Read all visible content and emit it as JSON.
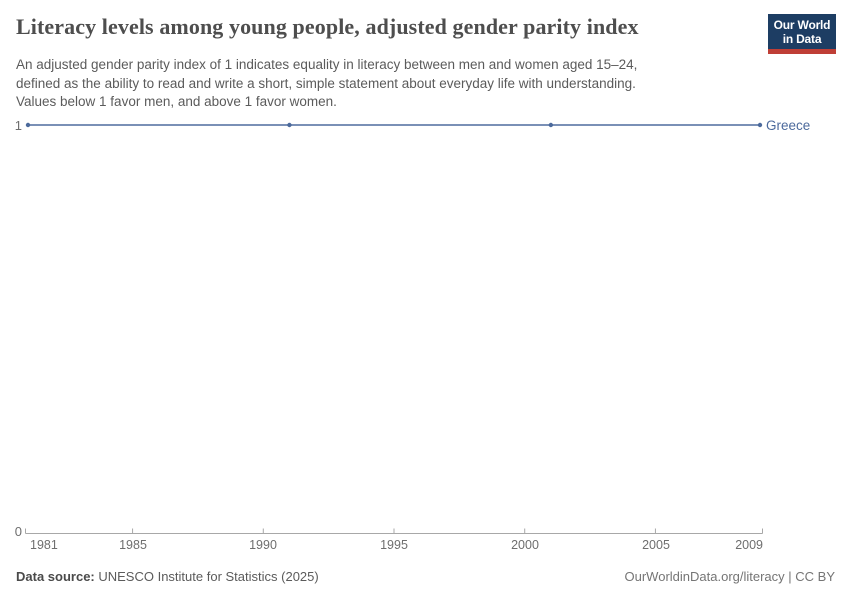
{
  "header": {
    "title": "Literacy levels among young people, adjusted gender parity index",
    "subtitle_lines": [
      "An adjusted gender parity index of 1 indicates equality in literacy between men and women aged 15–24,",
      "defined as the ability to read and write a short, simple statement about everyday life with understanding.",
      "Values below 1 favor men, and above 1 favor women."
    ],
    "logo": {
      "line1": "Our World",
      "line2": "in Data"
    }
  },
  "chart_data": {
    "type": "line",
    "title": "Literacy levels among young people, adjusted gender parity index",
    "entity": "Greece",
    "x": [
      1981,
      1991,
      2001,
      2009
    ],
    "series": [
      {
        "name": "Greece",
        "values": [
          1,
          1,
          1,
          1
        ]
      }
    ],
    "x_ticks": [
      "1981",
      "1985",
      "1990",
      "1995",
      "2000",
      "2005",
      "2009"
    ],
    "y_ticks": [
      "0",
      "1"
    ],
    "xlim": [
      1981,
      2009
    ],
    "ylim": [
      0,
      1
    ],
    "grid": false,
    "legend_position": "end-of-line-label",
    "line_color": "#4C6A9C"
  },
  "footer": {
    "data_source_label": "Data source:",
    "data_source_value": " UNESCO Institute for Statistics (2025)",
    "right_text": "OurWorldinData.org/literacy | CC BY"
  },
  "colors": {
    "line": "#4C6A9C",
    "entity_label": "#4C6A9C",
    "axis_line": "#a8a8a8",
    "tick_text": "#6e6e6e",
    "title_text": "#4e4e4e",
    "subtitle_text": "#5b5b5b",
    "logo_background": "#1d3d63",
    "logo_stripe": "#bf3e36"
  }
}
